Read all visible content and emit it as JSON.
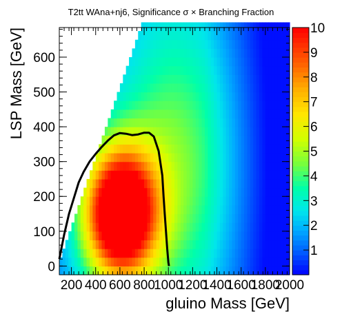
{
  "chart_data": {
    "type": "heatmap",
    "title": "T2tt WAna+nj6, Significance σ × Branching Fraction",
    "xlabel": "gluino Mass [GeV]",
    "ylabel": "LSP Mass [GeV]",
    "xlim": [
      100,
      2000
    ],
    "ylim": [
      -25,
      685
    ],
    "xticks": [
      200,
      400,
      600,
      800,
      1000,
      1200,
      1400,
      1600,
      1800,
      2000
    ],
    "xtick_labels": [
      "200",
      "400",
      "600",
      "800",
      "1000",
      "1200",
      "1400",
      "1600",
      "1800",
      "2000"
    ],
    "yticks": [
      0,
      100,
      200,
      300,
      400,
      500,
      600
    ],
    "ytick_labels": [
      "0",
      "100",
      "200",
      "300",
      "400",
      "500",
      "600"
    ],
    "colorbar": {
      "range": [
        0,
        10
      ],
      "ticks": [
        1,
        2,
        3,
        4,
        5,
        6,
        7,
        8,
        9,
        10
      ],
      "tick_labels": [
        "1",
        "2",
        "3",
        "4",
        "5",
        "6",
        "7",
        "8",
        "9",
        "10"
      ]
    },
    "grid": false,
    "populated_region": "LSP mass below gluino mass minus about 100 GeV",
    "significance_peak": {
      "gluino_mass": 600,
      "lsp_mass": 150,
      "value": 10
    },
    "contour": {
      "name": "significance contour",
      "x": [
        100,
        140,
        180,
        220,
        260,
        300,
        350,
        400,
        450,
        500,
        550,
        600,
        650,
        700,
        750,
        800,
        840,
        880,
        920,
        950,
        960,
        970,
        980,
        990,
        1000,
        1005
      ],
      "y": [
        20,
        90,
        150,
        195,
        240,
        270,
        300,
        322,
        342,
        360,
        375,
        382,
        380,
        376,
        378,
        383,
        383,
        372,
        330,
        260,
        200,
        150,
        100,
        50,
        10,
        0
      ]
    }
  }
}
